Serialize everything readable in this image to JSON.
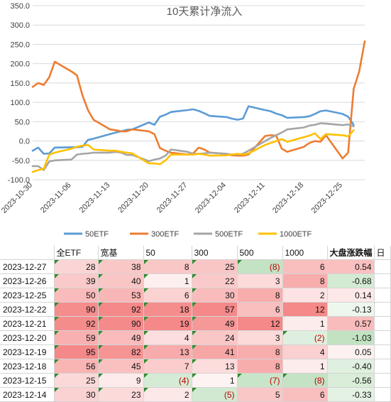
{
  "chart_data": {
    "type": "line",
    "title": "10天累计净流入",
    "ylim": [
      -100,
      350
    ],
    "yticks": [
      "-100.0",
      "-50.0",
      "0.0",
      "50.0",
      "100.0",
      "150.0",
      "200.0",
      "250.0",
      "300.0",
      "350.0"
    ],
    "ytick_values": [
      -100,
      -50,
      0,
      50,
      100,
      150,
      200,
      250,
      300,
      350
    ],
    "xlim": [
      "2023-10-30",
      "2023-12-29"
    ],
    "xticks": [
      "2023-10-30",
      "2023-11-06",
      "2023-11-13",
      "2023-11-20",
      "2023-11-27",
      "2023-12-04",
      "2023-12-11",
      "2023-12-18",
      "2023-12-25"
    ],
    "grid": true,
    "legend_position": "bottom",
    "series": [
      {
        "name": "50ETF",
        "color": "#5b9bd5",
        "points": [
          [
            "2023-10-30",
            -25
          ],
          [
            "2023-10-31",
            -17
          ],
          [
            "2023-11-01",
            -33
          ],
          [
            "2023-11-02",
            -32
          ],
          [
            "2023-11-03",
            -17
          ],
          [
            "2023-11-06",
            -16
          ],
          [
            "2023-11-07",
            -16
          ],
          [
            "2023-11-08",
            -15
          ],
          [
            "2023-11-09",
            3
          ],
          [
            "2023-11-10",
            6
          ],
          [
            "2023-11-13",
            18
          ],
          [
            "2023-11-14",
            22
          ],
          [
            "2023-11-15",
            25
          ],
          [
            "2023-11-16",
            29
          ],
          [
            "2023-11-17",
            30
          ],
          [
            "2023-11-20",
            48
          ],
          [
            "2023-11-21",
            42
          ],
          [
            "2023-11-22",
            63
          ],
          [
            "2023-11-23",
            68
          ],
          [
            "2023-11-24",
            75
          ],
          [
            "2023-11-27",
            80
          ],
          [
            "2023-11-28",
            82
          ],
          [
            "2023-11-29",
            78
          ],
          [
            "2023-11-30",
            72
          ],
          [
            "2023-12-01",
            65
          ],
          [
            "2023-12-04",
            62
          ],
          [
            "2023-12-05",
            58
          ],
          [
            "2023-12-06",
            55
          ],
          [
            "2023-12-07",
            58
          ],
          [
            "2023-12-08",
            90
          ],
          [
            "2023-12-11",
            80
          ],
          [
            "2023-12-12",
            77
          ],
          [
            "2023-12-13",
            71
          ],
          [
            "2023-12-14",
            67
          ],
          [
            "2023-12-15",
            60
          ],
          [
            "2023-12-18",
            62
          ],
          [
            "2023-12-19",
            64
          ],
          [
            "2023-12-20",
            70
          ],
          [
            "2023-12-21",
            77
          ],
          [
            "2023-12-22",
            79
          ],
          [
            "2023-12-25",
            70
          ],
          [
            "2023-12-26",
            63
          ],
          [
            "2023-12-27",
            42
          ]
        ]
      },
      {
        "name": "300ETF",
        "color": "#ed7d31",
        "points": [
          [
            "2023-10-30",
            140
          ],
          [
            "2023-10-31",
            150
          ],
          [
            "2023-11-01",
            145
          ],
          [
            "2023-11-02",
            165
          ],
          [
            "2023-11-03",
            205
          ],
          [
            "2023-11-06",
            180
          ],
          [
            "2023-11-07",
            170
          ],
          [
            "2023-11-08",
            118
          ],
          [
            "2023-11-09",
            80
          ],
          [
            "2023-11-10",
            55
          ],
          [
            "2023-11-13",
            30
          ],
          [
            "2023-11-14",
            28
          ],
          [
            "2023-11-15",
            25
          ],
          [
            "2023-11-16",
            25
          ],
          [
            "2023-11-17",
            30
          ],
          [
            "2023-11-20",
            25
          ],
          [
            "2023-11-21",
            18
          ],
          [
            "2023-11-22",
            -18
          ],
          [
            "2023-11-23",
            -25
          ],
          [
            "2023-11-24",
            -30
          ],
          [
            "2023-11-27",
            -35
          ],
          [
            "2023-11-28",
            -32
          ],
          [
            "2023-11-29",
            -17
          ],
          [
            "2023-11-30",
            -22
          ],
          [
            "2023-12-01",
            -30
          ],
          [
            "2023-12-04",
            -33
          ],
          [
            "2023-12-05",
            -37
          ],
          [
            "2023-12-06",
            -38
          ],
          [
            "2023-12-07",
            -38
          ],
          [
            "2023-12-08",
            -35
          ],
          [
            "2023-12-11",
            13
          ],
          [
            "2023-12-12",
            15
          ],
          [
            "2023-12-13",
            14
          ],
          [
            "2023-12-14",
            -20
          ],
          [
            "2023-12-15",
            -28
          ],
          [
            "2023-12-18",
            -15
          ],
          [
            "2023-12-19",
            -5
          ],
          [
            "2023-12-20",
            0
          ],
          [
            "2023-12-21",
            -2
          ],
          [
            "2023-12-22",
            15
          ],
          [
            "2023-12-25",
            -45
          ],
          [
            "2023-12-26",
            -30
          ],
          [
            "2023-12-27",
            135
          ],
          [
            "2023-12-28",
            180
          ],
          [
            "2023-12-29",
            258
          ]
        ]
      },
      {
        "name": "500ETF",
        "color": "#a5a5a5",
        "points": [
          [
            "2023-10-30",
            -65
          ],
          [
            "2023-10-31",
            -65
          ],
          [
            "2023-11-01",
            -75
          ],
          [
            "2023-11-02",
            -53
          ],
          [
            "2023-11-03",
            -50
          ],
          [
            "2023-11-06",
            -48
          ],
          [
            "2023-11-07",
            -35
          ],
          [
            "2023-11-08",
            -33
          ],
          [
            "2023-11-09",
            -32
          ],
          [
            "2023-11-10",
            -30
          ],
          [
            "2023-11-13",
            -30
          ],
          [
            "2023-11-14",
            -28
          ],
          [
            "2023-11-15",
            -30
          ],
          [
            "2023-11-16",
            -36
          ],
          [
            "2023-11-17",
            -36
          ],
          [
            "2023-11-20",
            -52
          ],
          [
            "2023-11-21",
            -48
          ],
          [
            "2023-11-22",
            -45
          ],
          [
            "2023-11-23",
            -38
          ],
          [
            "2023-11-24",
            -22
          ],
          [
            "2023-11-27",
            -28
          ],
          [
            "2023-11-28",
            -33
          ],
          [
            "2023-11-29",
            -33
          ],
          [
            "2023-11-30",
            -32
          ],
          [
            "2023-12-01",
            -30
          ],
          [
            "2023-12-04",
            -33
          ],
          [
            "2023-12-05",
            -35
          ],
          [
            "2023-12-06",
            -35
          ],
          [
            "2023-12-07",
            -33
          ],
          [
            "2023-12-08",
            -25
          ],
          [
            "2023-12-11",
            0
          ],
          [
            "2023-12-12",
            8
          ],
          [
            "2023-12-13",
            15
          ],
          [
            "2023-12-14",
            22
          ],
          [
            "2023-12-15",
            30
          ],
          [
            "2023-12-18",
            35
          ],
          [
            "2023-12-19",
            40
          ],
          [
            "2023-12-20",
            42
          ],
          [
            "2023-12-21",
            46
          ],
          [
            "2023-12-22",
            45
          ],
          [
            "2023-12-25",
            41
          ],
          [
            "2023-12-26",
            43
          ],
          [
            "2023-12-27",
            38
          ]
        ]
      },
      {
        "name": "1000ETF",
        "color": "#ffc000",
        "points": [
          [
            "2023-10-30",
            -80
          ],
          [
            "2023-10-31",
            -75
          ],
          [
            "2023-11-01",
            -72
          ],
          [
            "2023-11-02",
            -35
          ],
          [
            "2023-11-03",
            -30
          ],
          [
            "2023-11-06",
            -20
          ],
          [
            "2023-11-07",
            -15
          ],
          [
            "2023-11-08",
            -12
          ],
          [
            "2023-11-09",
            -10
          ],
          [
            "2023-11-10",
            -22
          ],
          [
            "2023-11-13",
            -25
          ],
          [
            "2023-11-14",
            -25
          ],
          [
            "2023-11-15",
            -28
          ],
          [
            "2023-11-16",
            -30
          ],
          [
            "2023-11-17",
            -32
          ],
          [
            "2023-11-20",
            -58
          ],
          [
            "2023-11-21",
            -58
          ],
          [
            "2023-11-22",
            -60
          ],
          [
            "2023-11-23",
            -50
          ],
          [
            "2023-11-24",
            -35
          ],
          [
            "2023-11-27",
            -35
          ],
          [
            "2023-11-28",
            -35
          ],
          [
            "2023-11-29",
            -33
          ],
          [
            "2023-11-30",
            -35
          ],
          [
            "2023-12-01",
            -38
          ],
          [
            "2023-12-04",
            -37
          ],
          [
            "2023-12-05",
            -35
          ],
          [
            "2023-12-06",
            -33
          ],
          [
            "2023-12-07",
            -35
          ],
          [
            "2023-12-08",
            -32
          ],
          [
            "2023-12-11",
            -10
          ],
          [
            "2023-12-12",
            -5
          ],
          [
            "2023-12-13",
            0
          ],
          [
            "2023-12-14",
            5
          ],
          [
            "2023-12-15",
            -2
          ],
          [
            "2023-12-18",
            10
          ],
          [
            "2023-12-19",
            14
          ],
          [
            "2023-12-20",
            20
          ],
          [
            "2023-12-21",
            5
          ],
          [
            "2023-12-22",
            18
          ],
          [
            "2023-12-25",
            15
          ],
          [
            "2023-12-26",
            12
          ],
          [
            "2023-12-27",
            28
          ]
        ]
      }
    ]
  },
  "table": {
    "headers": [
      "",
      "全ETF",
      "宽基",
      "50",
      "300",
      "500",
      "1000",
      "大盘涨跌幅",
      "日"
    ],
    "rows": [
      {
        "date": "2023-12-27",
        "all": "28",
        "broad": "38",
        "e50": "8",
        "e300": "25",
        "e500": "(8)",
        "e1000": "6",
        "market": "0.54"
      },
      {
        "date": "2023-12-26",
        "all": "39",
        "broad": "40",
        "e50": "1",
        "e300": "22",
        "e500": "3",
        "e1000": "8",
        "market": "-0.68"
      },
      {
        "date": "2023-12-25",
        "all": "50",
        "broad": "53",
        "e50": "6",
        "e300": "30",
        "e500": "8",
        "e1000": "2",
        "market": "0.14"
      },
      {
        "date": "2023-12-22",
        "all": "90",
        "broad": "92",
        "e50": "18",
        "e300": "57",
        "e500": "6",
        "e1000": "12",
        "market": "-0.13"
      },
      {
        "date": "2023-12-21",
        "all": "92",
        "broad": "90",
        "e50": "19",
        "e300": "49",
        "e500": "12",
        "e1000": "1",
        "market": "0.57"
      },
      {
        "date": "2023-12-20",
        "all": "59",
        "broad": "49",
        "e50": "4",
        "e300": "24",
        "e500": "3",
        "e1000": "(2)",
        "market": "-1.03"
      },
      {
        "date": "2023-12-19",
        "all": "95",
        "broad": "82",
        "e50": "13",
        "e300": "41",
        "e500": "8",
        "e1000": "4",
        "market": "0.05"
      },
      {
        "date": "2023-12-18",
        "all": "56",
        "broad": "45",
        "e50": "7",
        "e300": "13",
        "e500": "8",
        "e1000": "1",
        "market": "-0.40"
      },
      {
        "date": "2023-12-15",
        "all": "25",
        "broad": "9",
        "e50": "(4)",
        "e300": "1",
        "e500": "(7)",
        "e1000": "(8)",
        "market": "-0.56"
      },
      {
        "date": "2023-12-14",
        "all": "30",
        "broad": "23",
        "e50": "2",
        "e300": "(5)",
        "e500": "5",
        "e1000": "6",
        "market": "-0.33"
      }
    ]
  }
}
